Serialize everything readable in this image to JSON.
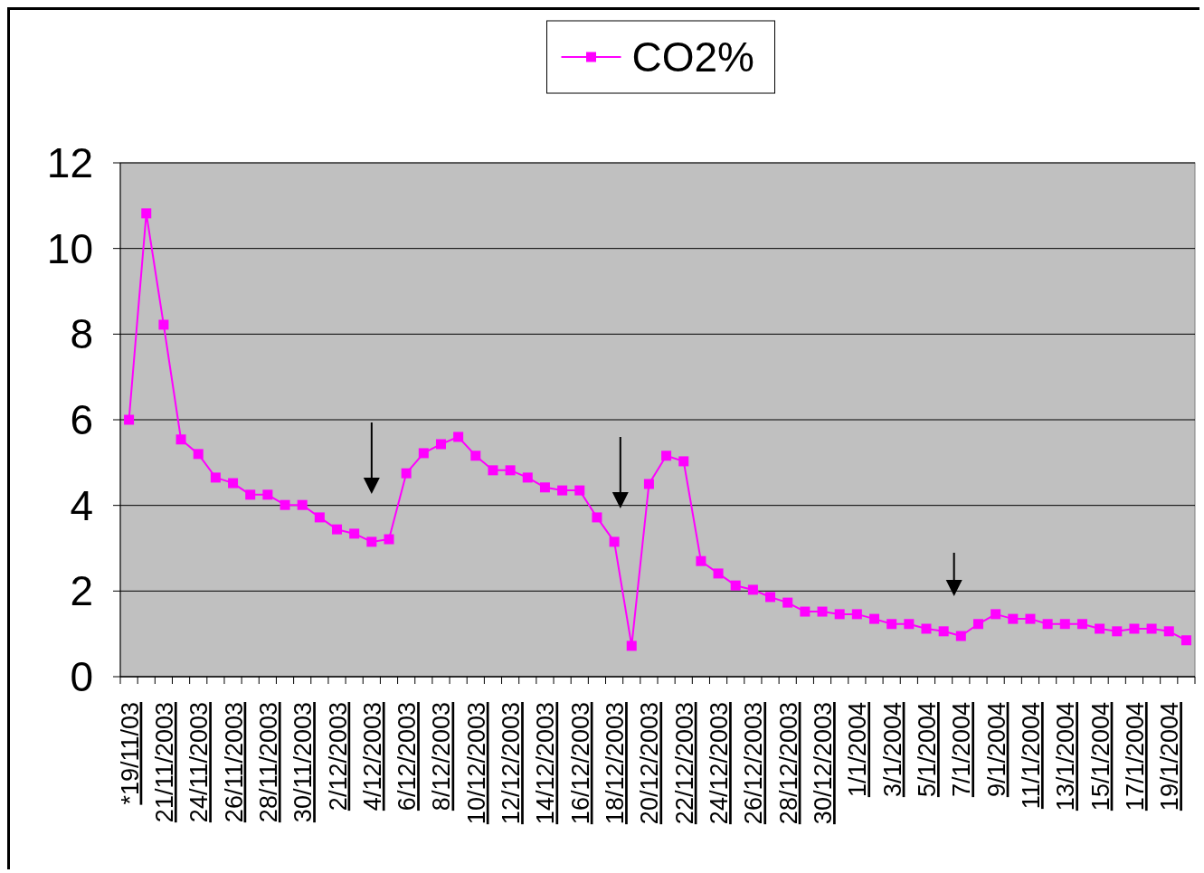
{
  "chart_data": {
    "type": "line",
    "categories": [
      "*19/11/03",
      null,
      "21/11/2003",
      null,
      "24/11/2003",
      null,
      "26/11/2003",
      null,
      "28/11/2003",
      null,
      "30/11/2003",
      null,
      "2/12/2003",
      null,
      "4/12/2003",
      null,
      "6/12/2003",
      null,
      "8/12/2003",
      null,
      "10/12/2003",
      null,
      "12/12/2003",
      null,
      "14/12/2003",
      null,
      "16/12/2003",
      null,
      "18/12/2003",
      null,
      "20/12/2003",
      null,
      "22/12/2003",
      null,
      "24/12/2003",
      null,
      "26/12/2003",
      null,
      "28/12/2003",
      null,
      "30/12/2003",
      null,
      "1/1/2004",
      null,
      "3/1/2004",
      null,
      "5/1/2004",
      null,
      "7/1/2004",
      null,
      "9/1/2004",
      null,
      "11/1/2004",
      null,
      "13/1/2004",
      null,
      "15/1/2004",
      null,
      "17/1/2004",
      null,
      "19/1/2004",
      null
    ],
    "series": [
      {
        "name": "CO2%",
        "color": "#ff00ff",
        "values": [
          6.0,
          10.82,
          8.22,
          5.54,
          5.2,
          4.65,
          4.52,
          4.25,
          4.25,
          4.01,
          4.01,
          3.72,
          3.44,
          3.34,
          3.15,
          3.21,
          4.75,
          5.22,
          5.43,
          5.6,
          5.16,
          4.82,
          4.82,
          4.65,
          4.42,
          4.35,
          4.35,
          3.72,
          3.15,
          0.72,
          4.5,
          5.16,
          5.03,
          2.7,
          2.41,
          2.13,
          2.03,
          1.86,
          1.73,
          1.52,
          1.52,
          1.46,
          1.46,
          1.35,
          1.23,
          1.23,
          1.12,
          1.06,
          0.95,
          1.23,
          1.46,
          1.35,
          1.35,
          1.23,
          1.23,
          1.23,
          1.12,
          1.06,
          1.12,
          1.12,
          1.06,
          0.85
        ]
      }
    ],
    "ylim": [
      0,
      12
    ],
    "yticks": [
      0,
      2,
      4,
      6,
      8,
      10,
      12
    ],
    "grid": "y",
    "legend": "top",
    "marker": "square",
    "line_style": "solid"
  }
}
